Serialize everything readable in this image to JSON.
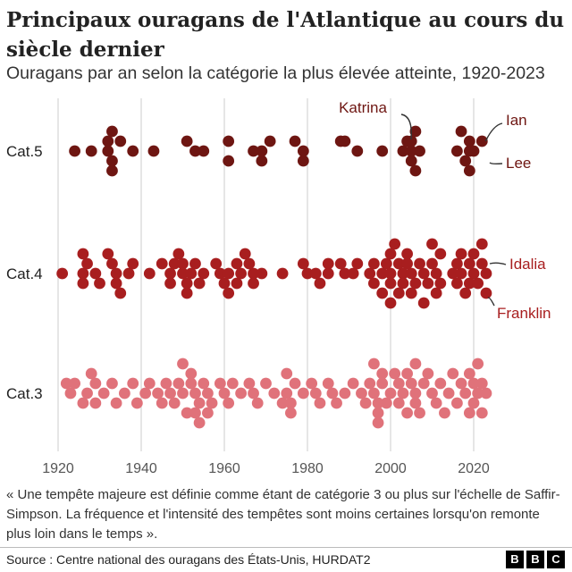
{
  "header": {
    "title": "Principaux ouragans de l'Atlantique au cours du siècle dernier",
    "subtitle": "Ouragans par an selon la catégorie la plus élevée atteinte, 1920-2023"
  },
  "chart_data": {
    "type": "scatter",
    "chart_style": "beeswarm",
    "x_ticks": [
      1920,
      1940,
      1960,
      1980,
      2000,
      2020
    ],
    "xlim": [
      1920,
      2023
    ],
    "grid": "vertical",
    "series": [
      {
        "name": "Cat.5",
        "color": "#6e1612",
        "points": [
          {
            "x": 1924,
            "y": 0
          },
          {
            "x": 1928,
            "y": 0
          },
          {
            "x": 1932,
            "y": 0
          },
          {
            "x": 1932,
            "y": 1
          },
          {
            "x": 1933,
            "y": 2
          },
          {
            "x": 1933,
            "y": -1
          },
          {
            "x": 1933,
            "y": -2
          },
          {
            "x": 1935,
            "y": 1
          },
          {
            "x": 1938,
            "y": 0
          },
          {
            "x": 1943,
            "y": 0
          },
          {
            "x": 1951,
            "y": 1
          },
          {
            "x": 1953,
            "y": 0
          },
          {
            "x": 1955,
            "y": 0
          },
          {
            "x": 1961,
            "y": 1
          },
          {
            "x": 1961,
            "y": -1
          },
          {
            "x": 1967,
            "y": 0
          },
          {
            "x": 1969,
            "y": 0
          },
          {
            "x": 1969,
            "y": -1
          },
          {
            "x": 1971,
            "y": 1
          },
          {
            "x": 1977,
            "y": 1
          },
          {
            "x": 1979,
            "y": 0
          },
          {
            "x": 1979,
            "y": -1
          },
          {
            "x": 1988,
            "y": 1
          },
          {
            "x": 1989,
            "y": 1
          },
          {
            "x": 1992,
            "y": 0
          },
          {
            "x": 1998,
            "y": 0
          },
          {
            "x": 2003,
            "y": 0
          },
          {
            "x": 2004,
            "y": 1
          },
          {
            "x": 2005,
            "y": 1
          },
          {
            "x": 2005,
            "y": 0
          },
          {
            "x": 2005,
            "y": -1
          },
          {
            "x": 2006,
            "y": 2
          },
          {
            "x": 2006,
            "y": -2
          },
          {
            "x": 2007,
            "y": 0
          },
          {
            "x": 2016,
            "y": 0
          },
          {
            "x": 2017,
            "y": 2
          },
          {
            "x": 2018,
            "y": -1
          },
          {
            "x": 2019,
            "y": 1
          },
          {
            "x": 2019,
            "y": 0
          },
          {
            "x": 2019,
            "y": -2
          },
          {
            "x": 2020,
            "y": 0
          },
          {
            "x": 2022,
            "y": 1
          }
        ]
      },
      {
        "name": "Cat.4",
        "color": "#a81e1f",
        "points": [
          {
            "x": 1921,
            "y": 0
          },
          {
            "x": 1926,
            "y": 2
          },
          {
            "x": 1926,
            "y": 0
          },
          {
            "x": 1926,
            "y": -1
          },
          {
            "x": 1927,
            "y": 1
          },
          {
            "x": 1929,
            "y": 0
          },
          {
            "x": 1930,
            "y": -1
          },
          {
            "x": 1932,
            "y": 2
          },
          {
            "x": 1933,
            "y": 1
          },
          {
            "x": 1934,
            "y": 0
          },
          {
            "x": 1934,
            "y": -1
          },
          {
            "x": 1935,
            "y": -2
          },
          {
            "x": 1937,
            "y": 0
          },
          {
            "x": 1938,
            "y": 1
          },
          {
            "x": 1942,
            "y": 0
          },
          {
            "x": 1945,
            "y": 1
          },
          {
            "x": 1947,
            "y": 0
          },
          {
            "x": 1947,
            "y": -1
          },
          {
            "x": 1948,
            "y": 1
          },
          {
            "x": 1949,
            "y": 2
          },
          {
            "x": 1950,
            "y": 1
          },
          {
            "x": 1950,
            "y": 0
          },
          {
            "x": 1951,
            "y": -1
          },
          {
            "x": 1951,
            "y": -2
          },
          {
            "x": 1952,
            "y": 0
          },
          {
            "x": 1953,
            "y": 1
          },
          {
            "x": 1954,
            "y": -1
          },
          {
            "x": 1955,
            "y": 0
          },
          {
            "x": 1958,
            "y": 1
          },
          {
            "x": 1959,
            "y": 0
          },
          {
            "x": 1960,
            "y": -1
          },
          {
            "x": 1961,
            "y": 0
          },
          {
            "x": 1961,
            "y": -2
          },
          {
            "x": 1963,
            "y": 1
          },
          {
            "x": 1963,
            "y": -1
          },
          {
            "x": 1964,
            "y": 0
          },
          {
            "x": 1965,
            "y": 2
          },
          {
            "x": 1966,
            "y": 1
          },
          {
            "x": 1967,
            "y": 0
          },
          {
            "x": 1967,
            "y": -1
          },
          {
            "x": 1969,
            "y": 0
          },
          {
            "x": 1974,
            "y": 0
          },
          {
            "x": 1979,
            "y": 1
          },
          {
            "x": 1980,
            "y": 0
          },
          {
            "x": 1982,
            "y": 0
          },
          {
            "x": 1983,
            "y": -1
          },
          {
            "x": 1985,
            "y": 1
          },
          {
            "x": 1985,
            "y": 0
          },
          {
            "x": 1988,
            "y": 1
          },
          {
            "x": 1989,
            "y": 0
          },
          {
            "x": 1991,
            "y": 0
          },
          {
            "x": 1992,
            "y": 1
          },
          {
            "x": 1995,
            "y": 0
          },
          {
            "x": 1996,
            "y": 1
          },
          {
            "x": 1996,
            "y": -1
          },
          {
            "x": 1998,
            "y": 0
          },
          {
            "x": 1998,
            "y": -2
          },
          {
            "x": 1999,
            "y": 1
          },
          {
            "x": 2000,
            "y": 2
          },
          {
            "x": 2000,
            "y": 0
          },
          {
            "x": 2000,
            "y": -1
          },
          {
            "x": 2000,
            "y": -3
          },
          {
            "x": 2001,
            "y": 3
          },
          {
            "x": 2002,
            "y": 1
          },
          {
            "x": 2002,
            "y": -2
          },
          {
            "x": 2003,
            "y": 0
          },
          {
            "x": 2003,
            "y": -1
          },
          {
            "x": 2004,
            "y": 2
          },
          {
            "x": 2004,
            "y": 1
          },
          {
            "x": 2005,
            "y": 0
          },
          {
            "x": 2005,
            "y": -2
          },
          {
            "x": 2006,
            "y": -1
          },
          {
            "x": 2007,
            "y": 1
          },
          {
            "x": 2008,
            "y": 0
          },
          {
            "x": 2008,
            "y": -3
          },
          {
            "x": 2009,
            "y": -1
          },
          {
            "x": 2010,
            "y": 3
          },
          {
            "x": 2010,
            "y": 1
          },
          {
            "x": 2011,
            "y": 0
          },
          {
            "x": 2011,
            "y": -2
          },
          {
            "x": 2012,
            "y": 2
          },
          {
            "x": 2012,
            "y": -1
          },
          {
            "x": 2015,
            "y": 0
          },
          {
            "x": 2016,
            "y": 1
          },
          {
            "x": 2016,
            "y": -1
          },
          {
            "x": 2017,
            "y": 2
          },
          {
            "x": 2017,
            "y": 0
          },
          {
            "x": 2018,
            "y": -2
          },
          {
            "x": 2019,
            "y": 1
          },
          {
            "x": 2019,
            "y": -1
          },
          {
            "x": 2020,
            "y": 2
          },
          {
            "x": 2020,
            "y": 0
          },
          {
            "x": 2021,
            "y": -1
          },
          {
            "x": 2022,
            "y": 3
          },
          {
            "x": 2022,
            "y": 1
          },
          {
            "x": 2023,
            "y": 0
          },
          {
            "x": 2023,
            "y": -2
          }
        ]
      },
      {
        "name": "Cat.3",
        "color": "#e0727a",
        "points": [
          {
            "x": 1922,
            "y": 1
          },
          {
            "x": 1923,
            "y": 0
          },
          {
            "x": 1924,
            "y": 1
          },
          {
            "x": 1926,
            "y": -1
          },
          {
            "x": 1927,
            "y": 0
          },
          {
            "x": 1928,
            "y": 2
          },
          {
            "x": 1929,
            "y": 1
          },
          {
            "x": 1929,
            "y": -1
          },
          {
            "x": 1931,
            "y": 0
          },
          {
            "x": 1933,
            "y": 1
          },
          {
            "x": 1934,
            "y": -1
          },
          {
            "x": 1936,
            "y": 0
          },
          {
            "x": 1938,
            "y": 1
          },
          {
            "x": 1939,
            "y": -1
          },
          {
            "x": 1941,
            "y": 0
          },
          {
            "x": 1942,
            "y": 1
          },
          {
            "x": 1944,
            "y": 0
          },
          {
            "x": 1945,
            "y": -1
          },
          {
            "x": 1946,
            "y": 1
          },
          {
            "x": 1947,
            "y": 0
          },
          {
            "x": 1948,
            "y": -1
          },
          {
            "x": 1949,
            "y": 1
          },
          {
            "x": 1950,
            "y": 3
          },
          {
            "x": 1950,
            "y": 0
          },
          {
            "x": 1951,
            "y": -2
          },
          {
            "x": 1952,
            "y": 2
          },
          {
            "x": 1952,
            "y": 1
          },
          {
            "x": 1953,
            "y": 0
          },
          {
            "x": 1953,
            "y": -2
          },
          {
            "x": 1954,
            "y": -1
          },
          {
            "x": 1954,
            "y": -3
          },
          {
            "x": 1955,
            "y": 1
          },
          {
            "x": 1956,
            "y": 0
          },
          {
            "x": 1956,
            "y": -2
          },
          {
            "x": 1957,
            "y": -1
          },
          {
            "x": 1959,
            "y": 1
          },
          {
            "x": 1960,
            "y": 0
          },
          {
            "x": 1961,
            "y": -1
          },
          {
            "x": 1962,
            "y": 1
          },
          {
            "x": 1964,
            "y": 0
          },
          {
            "x": 1966,
            "y": 1
          },
          {
            "x": 1967,
            "y": 0
          },
          {
            "x": 1968,
            "y": -1
          },
          {
            "x": 1970,
            "y": 1
          },
          {
            "x": 1972,
            "y": 0
          },
          {
            "x": 1974,
            "y": -1
          },
          {
            "x": 1975,
            "y": 2
          },
          {
            "x": 1975,
            "y": 0
          },
          {
            "x": 1976,
            "y": -1
          },
          {
            "x": 1976,
            "y": -2
          },
          {
            "x": 1977,
            "y": 1
          },
          {
            "x": 1979,
            "y": 0
          },
          {
            "x": 1981,
            "y": 1
          },
          {
            "x": 1982,
            "y": 0
          },
          {
            "x": 1983,
            "y": -1
          },
          {
            "x": 1985,
            "y": 1
          },
          {
            "x": 1986,
            "y": 0
          },
          {
            "x": 1987,
            "y": -1
          },
          {
            "x": 1989,
            "y": 0
          },
          {
            "x": 1991,
            "y": 1
          },
          {
            "x": 1993,
            "y": 0
          },
          {
            "x": 1994,
            "y": -1
          },
          {
            "x": 1995,
            "y": 1
          },
          {
            "x": 1996,
            "y": 3
          },
          {
            "x": 1996,
            "y": 0
          },
          {
            "x": 1997,
            "y": -1
          },
          {
            "x": 1997,
            "y": -2
          },
          {
            "x": 1997,
            "y": -3
          },
          {
            "x": 1998,
            "y": 2
          },
          {
            "x": 1998,
            "y": 1
          },
          {
            "x": 1999,
            "y": -1
          },
          {
            "x": 2000,
            "y": 0
          },
          {
            "x": 2001,
            "y": 2
          },
          {
            "x": 2002,
            "y": 1
          },
          {
            "x": 2002,
            "y": -1
          },
          {
            "x": 2003,
            "y": 0
          },
          {
            "x": 2004,
            "y": 2
          },
          {
            "x": 2004,
            "y": -2
          },
          {
            "x": 2005,
            "y": 1
          },
          {
            "x": 2006,
            "y": 3
          },
          {
            "x": 2006,
            "y": 0
          },
          {
            "x": 2006,
            "y": -1
          },
          {
            "x": 2007,
            "y": -2
          },
          {
            "x": 2008,
            "y": 1
          },
          {
            "x": 2009,
            "y": 2
          },
          {
            "x": 2010,
            "y": 0
          },
          {
            "x": 2011,
            "y": -1
          },
          {
            "x": 2012,
            "y": 1
          },
          {
            "x": 2013,
            "y": -2
          },
          {
            "x": 2014,
            "y": 0
          },
          {
            "x": 2015,
            "y": 2
          },
          {
            "x": 2016,
            "y": -1
          },
          {
            "x": 2017,
            "y": 1
          },
          {
            "x": 2018,
            "y": 0
          },
          {
            "x": 2019,
            "y": 2
          },
          {
            "x": 2019,
            "y": -2
          },
          {
            "x": 2020,
            "y": 1
          },
          {
            "x": 2020,
            "y": -1
          },
          {
            "x": 2021,
            "y": 3
          },
          {
            "x": 2021,
            "y": 0
          },
          {
            "x": 2022,
            "y": 1
          },
          {
            "x": 2022,
            "y": -2
          },
          {
            "x": 2023,
            "y": 0
          }
        ]
      }
    ],
    "annotations": [
      {
        "series": "Cat.5",
        "text": "Katrina",
        "x": 2005,
        "y": 1,
        "color": "#6e1612"
      },
      {
        "series": "Cat.5",
        "text": "Ian",
        "x": 2022,
        "y": 1,
        "color": "#6e1612"
      },
      {
        "series": "Cat.5",
        "text": "Lee",
        "x": 2023,
        "y": -1,
        "color": "#6e1612"
      },
      {
        "series": "Cat.4",
        "text": "Idalia",
        "x": 2023,
        "y": 1,
        "color": "#a81e1f"
      },
      {
        "series": "Cat.4",
        "text": "Franklin",
        "x": 2023,
        "y": -2,
        "color": "#a81e1f"
      }
    ]
  },
  "footer": {
    "footnote": "« Une tempête majeure est définie comme étant de catégorie 3 ou plus sur l'échelle de Saffir-Simpson. La fréquence et l'intensité des tempêtes sont moins certaines lorsqu'on remonte plus loin dans le temps ».",
    "source": "Source : Centre national des ouragans des États-Unis, HURDAT2",
    "logo_letters": [
      "B",
      "B",
      "C"
    ]
  }
}
